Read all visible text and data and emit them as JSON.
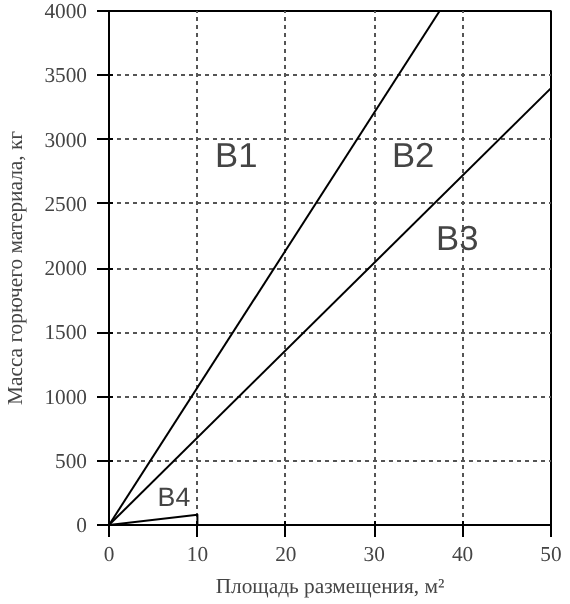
{
  "chart_data": {
    "type": "line",
    "xlabel": "Площадь размещения, м²",
    "ylabel": "Масса горючего материала, кг",
    "series": [
      {
        "color": "#000000",
        "x": [
          0,
          37.4
        ],
        "values": [
          0,
          4000
        ]
      },
      {
        "color": "#000000",
        "x": [
          0,
          50
        ],
        "values": [
          0,
          3400
        ]
      },
      {
        "color": "#000000",
        "x": [
          0,
          10,
          10
        ],
        "values": [
          0,
          80,
          0
        ]
      }
    ],
    "xlim": [
      0,
      50
    ],
    "ylim": [
      0,
      4000
    ],
    "xticks": [
      0,
      10,
      20,
      30,
      40,
      50
    ],
    "yticks": [
      0,
      500,
      1000,
      1500,
      2000,
      2500,
      3000,
      3500,
      4000
    ],
    "grid": true,
    "marker": "none",
    "line_style": "solid",
    "annotations": [
      "B1",
      "B2",
      "B3",
      {
        "text": "B4",
        "x": 5.5,
        "y": 100
      }
    ]
  }
}
